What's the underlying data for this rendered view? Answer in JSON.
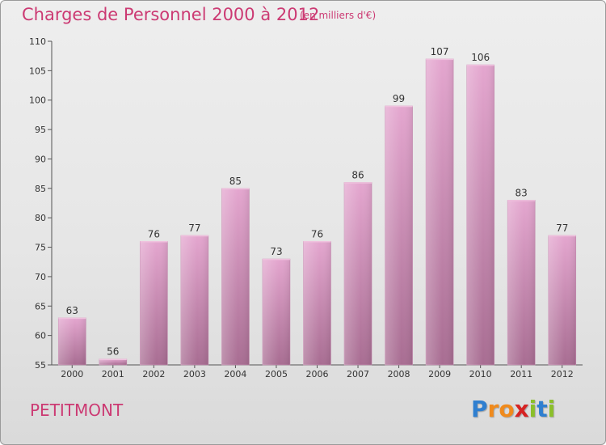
{
  "header": {
    "title": "Charges de Personnel 2000 à 2012",
    "subtitle": "(en milliers d'€)"
  },
  "footer": {
    "commune": "PETITMONT",
    "brand_letters": [
      "P",
      "r",
      "o",
      "x",
      "i",
      "t",
      "i"
    ],
    "brand_colors": [
      "#2f7fd0",
      "#f08a1c",
      "#f08a1c",
      "#d62222",
      "#8bbf2a",
      "#2f7fd0",
      "#8bbf2a"
    ]
  },
  "colors": {
    "bar_top": "#e4a6cf",
    "bar_bottom": "#a86d92",
    "axis": "#555555"
  },
  "chart_data": {
    "type": "bar",
    "title": "Charges de Personnel 2000 à 2012",
    "subtitle": "(en milliers d'€)",
    "xlabel": "",
    "ylabel": "",
    "categories": [
      "2000",
      "2001",
      "2002",
      "2003",
      "2004",
      "2005",
      "2006",
      "2007",
      "2008",
      "2009",
      "2010",
      "2011",
      "2012"
    ],
    "values": [
      63,
      56,
      76,
      77,
      85,
      73,
      76,
      86,
      99,
      107,
      106,
      83,
      77
    ],
    "ylim": [
      55,
      110
    ],
    "yticks": [
      55,
      60,
      65,
      70,
      75,
      80,
      85,
      90,
      95,
      100,
      105,
      110
    ],
    "grid": false,
    "data_labels": true
  }
}
